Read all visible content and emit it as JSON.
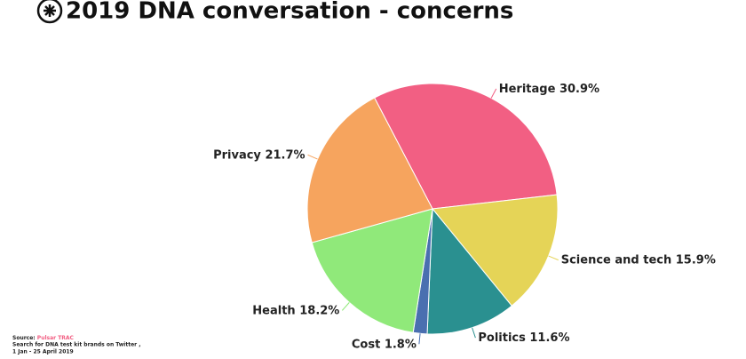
{
  "chart_data": {
    "type": "pie",
    "title": "2019 DNA conversation - concerns",
    "categories": [
      "Heritage",
      "Science and tech",
      "Politics",
      "Cost",
      "Health",
      "Privacy"
    ],
    "values": [
      30.9,
      15.9,
      11.6,
      1.8,
      18.2,
      21.7
    ],
    "value_labels": [
      "30.9%",
      "15.9%",
      "11.6%",
      "1.8%",
      "18.2%",
      "21.7%"
    ],
    "colors": [
      "#f25f83",
      "#e5d457",
      "#2a9090",
      "#4a6fb0",
      "#90e97a",
      "#f6a45e"
    ],
    "source_label": "Source:",
    "source": "Pulsar TRAC",
    "note": "Search for DNA test kit brands on Twitter ,",
    "date_range": "1 Jan - 25 April 2019"
  }
}
